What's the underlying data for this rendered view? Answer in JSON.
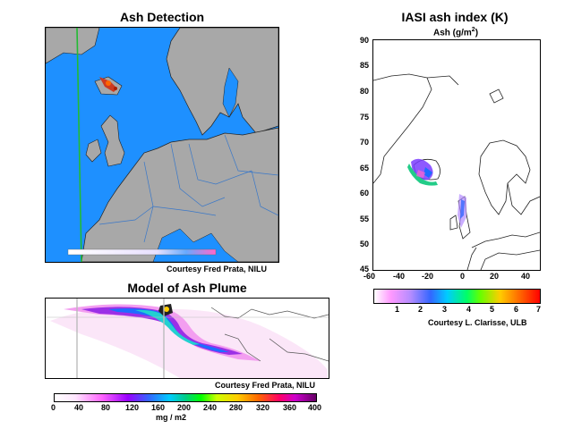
{
  "panels": {
    "ash_detection": {
      "title": "Ash Detection",
      "credit": "Courtesy Fred Prata, NILU"
    },
    "model_plume": {
      "title": "Model of Ash Plume",
      "credit": "Courtesy Fred Prata, NILU",
      "colorbar": {
        "ticks": [
          "0",
          "40",
          "80",
          "120",
          "160",
          "200",
          "240",
          "280",
          "320",
          "360",
          "400"
        ],
        "unit": "mg / m2"
      }
    },
    "iasi": {
      "title": "IASI ash index (K)",
      "subtitle": "Ash (g/m",
      "subtitle_sup": "2",
      "subtitle_end": ")",
      "credit": "Courtesy L. Clarisse, ULB",
      "y_ticks": [
        "90",
        "85",
        "80",
        "75",
        "70",
        "65",
        "60",
        "55",
        "50",
        "45"
      ],
      "x_ticks": [
        "-60",
        "-40",
        "-20",
        "0",
        "20",
        "40"
      ],
      "colorbar_ticks": [
        "1",
        "2",
        "3",
        "4",
        "5",
        "6",
        "7"
      ]
    }
  },
  "colors": {
    "ocean": "#1e90ff",
    "land": "#a8a8a8",
    "grid_green": "#22bb33"
  }
}
